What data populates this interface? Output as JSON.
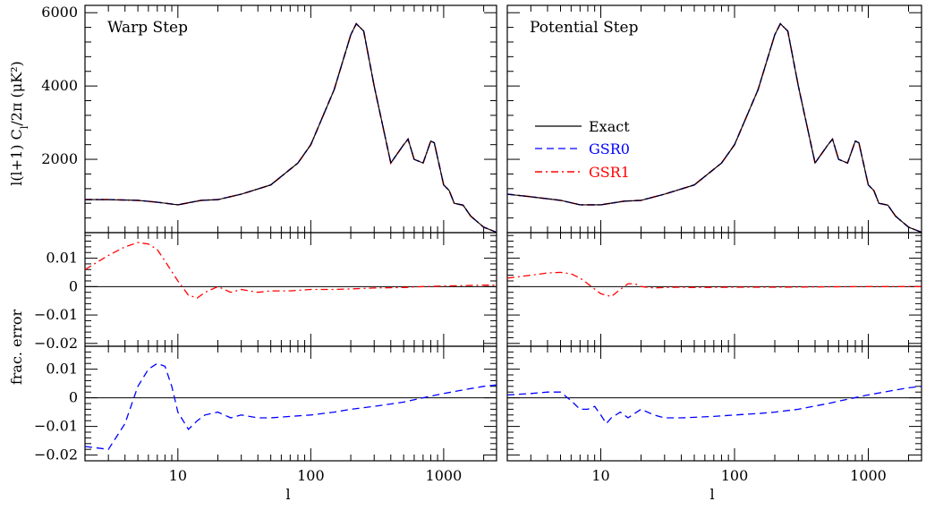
{
  "chart_data": [
    {
      "type": "line",
      "panel": "warp-top",
      "title": "Warp Step",
      "ylabel": "l(l+1) C_l/2π (μK²)",
      "xscale": "log",
      "xlim": [
        2,
        2500
      ],
      "ylim": [
        0,
        6200
      ],
      "yticks": [
        2000,
        4000,
        6000
      ],
      "x": [
        2,
        3,
        5,
        7,
        10,
        15,
        20,
        30,
        50,
        80,
        100,
        150,
        200,
        220,
        250,
        300,
        400,
        500,
        540,
        600,
        700,
        800,
        850,
        1000,
        1100,
        1200,
        1400,
        1600,
        2000,
        2500
      ],
      "series": [
        {
          "name": "Exact",
          "values": [
            900,
            900,
            880,
            830,
            760,
            880,
            900,
            1050,
            1300,
            1900,
            2400,
            3900,
            5400,
            5700,
            5500,
            4000,
            1900,
            2400,
            2550,
            2000,
            1900,
            2500,
            2450,
            1300,
            1150,
            800,
            750,
            450,
            150,
            10
          ]
        }
      ]
    },
    {
      "type": "line",
      "panel": "potential-top",
      "title": "Potential Step",
      "xscale": "log",
      "xlim": [
        2,
        2500
      ],
      "ylim": [
        0,
        6200
      ],
      "yticks": [
        2000,
        4000,
        6000
      ],
      "x": [
        2,
        3,
        5,
        7,
        10,
        15,
        20,
        30,
        50,
        80,
        100,
        150,
        200,
        220,
        250,
        300,
        400,
        500,
        540,
        600,
        700,
        800,
        850,
        1000,
        1100,
        1200,
        1400,
        1600,
        2000,
        2500
      ],
      "series": [
        {
          "name": "Exact",
          "values": [
            1050,
            980,
            880,
            760,
            760,
            860,
            880,
            1050,
            1300,
            1900,
            2400,
            3900,
            5400,
            5700,
            5500,
            4000,
            1900,
            2400,
            2550,
            2000,
            1900,
            2500,
            2450,
            1300,
            1150,
            800,
            750,
            450,
            150,
            10
          ]
        }
      ]
    },
    {
      "type": "line",
      "panel": "warp-gsr1",
      "xscale": "log",
      "xlim": [
        2,
        2500
      ],
      "ylim": [
        -0.021,
        0.019
      ],
      "yticks": [
        -0.02,
        -0.01,
        0,
        0.01
      ],
      "ylabel": "frac. error",
      "x": [
        2,
        3,
        4,
        5,
        6,
        7,
        8,
        10,
        12,
        14,
        16,
        20,
        25,
        30,
        40,
        50,
        70,
        100,
        150,
        200,
        300,
        500,
        700,
        1000,
        1500,
        2000,
        2500
      ],
      "series": [
        {
          "name": "GSR1",
          "values": [
            0.006,
            0.011,
            0.014,
            0.0155,
            0.015,
            0.013,
            0.009,
            0.002,
            -0.003,
            -0.004,
            -0.002,
            0.0,
            -0.002,
            -0.001,
            -0.002,
            -0.0015,
            -0.0015,
            -0.001,
            -0.001,
            -0.0008,
            -0.0005,
            -0.0003,
            0.0,
            0.0002,
            0.0004,
            0.0005,
            0.0005
          ]
        }
      ]
    },
    {
      "type": "line",
      "panel": "potential-gsr1",
      "xscale": "log",
      "xlim": [
        2,
        2500
      ],
      "ylim": [
        -0.021,
        0.019
      ],
      "yticks": [
        -0.02,
        -0.01,
        0,
        0.01
      ],
      "x": [
        2,
        3,
        4,
        5,
        6,
        7,
        8,
        10,
        12,
        14,
        16,
        18,
        20,
        25,
        30,
        40,
        50,
        100,
        200,
        500,
        1000,
        2500
      ],
      "series": [
        {
          "name": "GSR1",
          "values": [
            0.003,
            0.004,
            0.0048,
            0.005,
            0.0045,
            0.003,
            0.001,
            -0.0025,
            -0.0035,
            -0.001,
            0.001,
            0.001,
            0.0,
            -0.0005,
            -0.0003,
            -0.0002,
            -0.0003,
            -0.0002,
            -0.0002,
            -0.0001,
            0.0,
            0.0
          ]
        }
      ]
    },
    {
      "type": "line",
      "panel": "warp-gsr0",
      "xscale": "log",
      "xlim": [
        2,
        2500
      ],
      "ylim": [
        -0.022,
        0.018
      ],
      "yticks": [
        -0.02,
        -0.01,
        0,
        0.01
      ],
      "xticks": [
        10,
        100,
        1000
      ],
      "xlabel": "l",
      "x": [
        2,
        3,
        4,
        5,
        6,
        7,
        8,
        9,
        10,
        12,
        14,
        16,
        20,
        25,
        30,
        40,
        50,
        70,
        100,
        150,
        200,
        300,
        500,
        700,
        1000,
        1500,
        2000,
        2500
      ],
      "series": [
        {
          "name": "GSR0",
          "values": [
            -0.017,
            -0.018,
            -0.009,
            0.004,
            0.01,
            0.012,
            0.011,
            0.004,
            -0.005,
            -0.011,
            -0.008,
            -0.006,
            -0.005,
            -0.007,
            -0.006,
            -0.007,
            -0.007,
            -0.0065,
            -0.006,
            -0.005,
            -0.004,
            -0.003,
            -0.0015,
            0.0,
            0.0015,
            0.003,
            0.004,
            0.0045
          ]
        }
      ]
    },
    {
      "type": "line",
      "panel": "potential-gsr0",
      "xscale": "log",
      "xlim": [
        2,
        2500
      ],
      "ylim": [
        -0.022,
        0.018
      ],
      "yticks": [
        -0.02,
        -0.01,
        0,
        0.01
      ],
      "xticks": [
        10,
        100,
        1000
      ],
      "xlabel": "l",
      "x": [
        2,
        3,
        4,
        5,
        6,
        7,
        8,
        9,
        10,
        11,
        12,
        14,
        16,
        20,
        25,
        30,
        40,
        50,
        70,
        100,
        150,
        200,
        300,
        500,
        700,
        1000,
        1500,
        2000,
        2500
      ],
      "series": [
        {
          "name": "GSR0",
          "values": [
            0.001,
            0.0015,
            0.002,
            0.002,
            -0.001,
            -0.004,
            -0.004,
            -0.003,
            -0.006,
            -0.009,
            -0.007,
            -0.005,
            -0.007,
            -0.004,
            -0.006,
            -0.007,
            -0.007,
            -0.0068,
            -0.0065,
            -0.006,
            -0.0055,
            -0.005,
            -0.004,
            -0.002,
            -0.0005,
            0.001,
            0.0025,
            0.0035,
            0.004
          ]
        }
      ]
    }
  ],
  "legend": {
    "items": [
      {
        "label": "Exact",
        "color": "#000000",
        "dash": "solid"
      },
      {
        "label": "GSR0",
        "color": "#0000ff",
        "dash": "dashed"
      },
      {
        "label": "GSR1",
        "color": "#ff0000",
        "dash": "dash-dot"
      }
    ],
    "placement": "Potential Step panel, left middle"
  },
  "tick_labels": {
    "top_y": [
      "2000",
      "4000",
      "6000"
    ],
    "err_y": [
      "0.01",
      "0",
      "−0.01",
      "−0.02"
    ],
    "x": [
      "10",
      "100",
      "1000"
    ]
  },
  "labels": {
    "ylabel_top": "l(l+1) C",
    "ylabel_top_sub": "l",
    "ylabel_top_rest": "/2π (μK²)",
    "ylabel_err": "frac. error",
    "xlabel": "l"
  },
  "colors": {
    "exact": "#000000",
    "gsr0": "#0000ff",
    "gsr1": "#ff0000"
  }
}
